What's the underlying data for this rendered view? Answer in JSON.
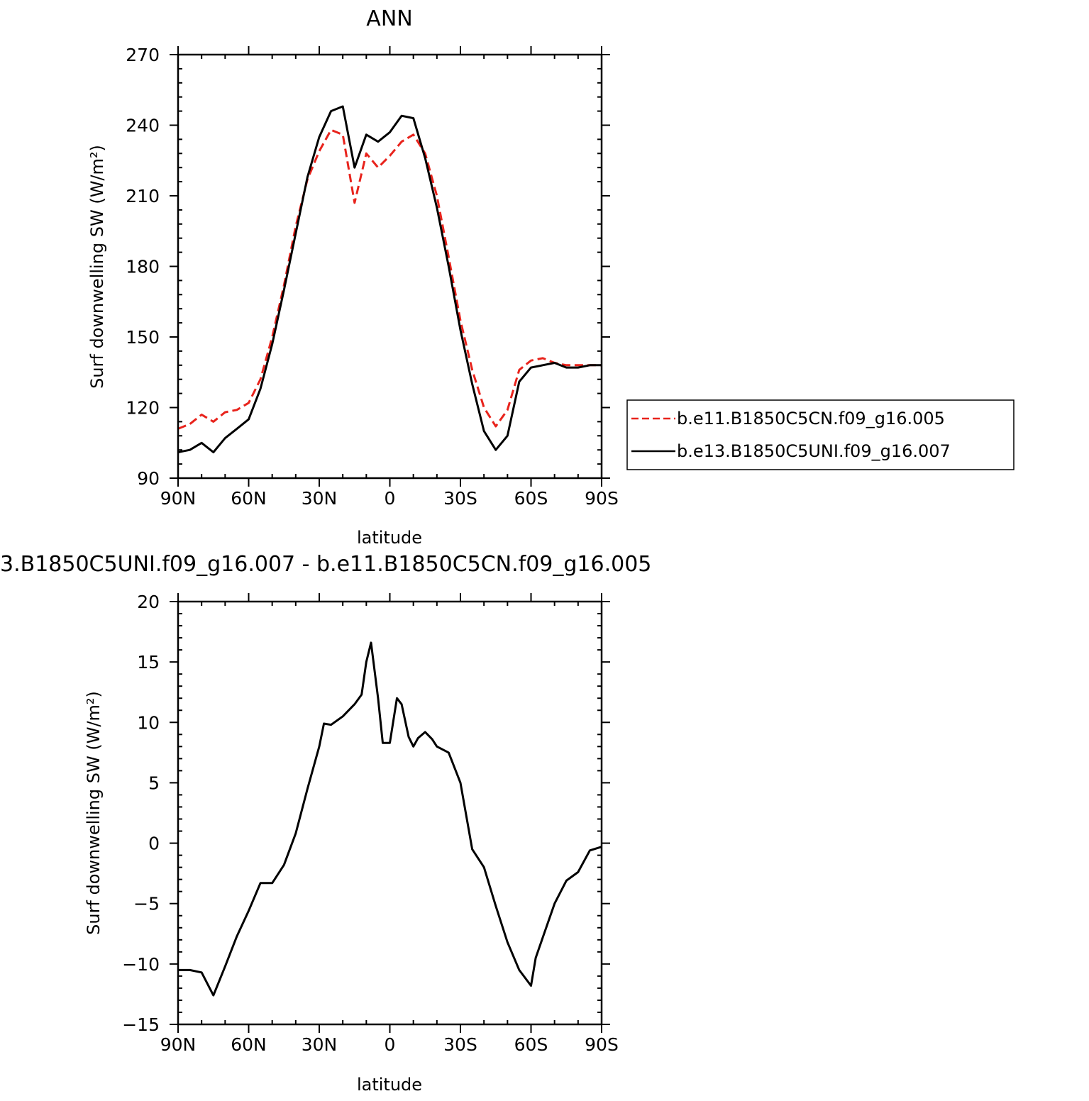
{
  "chart_data": [
    {
      "type": "line",
      "title": "ANN",
      "xlabel": "latitude",
      "ylabel": "Surf downwelling SW (W/m²)",
      "x_ticks": [
        "90N",
        "60N",
        "30N",
        "0",
        "30S",
        "60S",
        "90S"
      ],
      "y_ticks": [
        "90",
        "120",
        "150",
        "180",
        "210",
        "240",
        "270"
      ],
      "xlim": [
        90,
        -90
      ],
      "ylim": [
        90,
        270
      ],
      "legend": {
        "placement": "right-outside",
        "entries": [
          "b.e11.B1850C5CN.f09_g16.005",
          "b.e13.B1850C5UNI.f09_g16.007"
        ]
      },
      "x": [
        90,
        85,
        80,
        75,
        70,
        65,
        60,
        55,
        50,
        45,
        40,
        35,
        30,
        25,
        20,
        15,
        10,
        5,
        0,
        -5,
        -10,
        -15,
        -20,
        -25,
        -30,
        -35,
        -40,
        -45,
        -50,
        -55,
        -60,
        -65,
        -70,
        -75,
        -80,
        -85,
        -90
      ],
      "series": [
        {
          "name": "b.e11.B1850C5CN.f09_g16.005",
          "color": "#e8231c",
          "dash": "dashed",
          "values": [
            111,
            113,
            117,
            114,
            118,
            119,
            122,
            132,
            150,
            172,
            197,
            217,
            229,
            238,
            236,
            207,
            228,
            222,
            227,
            233,
            236,
            228,
            210,
            184,
            157,
            136,
            120,
            112,
            119,
            136,
            140,
            141,
            139,
            138,
            138,
            138,
            138
          ]
        },
        {
          "name": "b.e13.B1850C5UNI.f09_g16.007",
          "color": "#000000",
          "dash": "solid",
          "values": [
            101,
            102,
            105,
            101,
            107,
            111,
            115,
            128,
            147,
            170,
            194,
            218,
            235,
            246,
            248,
            222,
            236,
            233,
            237,
            244,
            243,
            226,
            205,
            180,
            153,
            130,
            110,
            102,
            108,
            131,
            137,
            138,
            139,
            137,
            137,
            138,
            138
          ]
        }
      ]
    },
    {
      "type": "line",
      "title": "3.B1850C5UNI.f09_g16.007 - b.e11.B1850C5CN.f09_g16.005",
      "xlabel": "latitude",
      "ylabel": "Surf downwelling SW (W/m²)",
      "x_ticks": [
        "90N",
        "60N",
        "30N",
        "0",
        "30S",
        "60S",
        "90S"
      ],
      "y_ticks": [
        "20",
        "15",
        "10",
        "5",
        "0",
        "-5",
        "-10",
        "-15"
      ],
      "xlim": [
        90,
        -90
      ],
      "ylim": [
        -15,
        20
      ],
      "x": [
        90,
        85,
        80,
        75,
        70,
        65,
        60,
        55,
        50,
        45,
        40,
        35,
        30,
        28,
        25,
        20,
        15,
        12,
        10,
        8,
        5,
        3,
        0,
        -3,
        -5,
        -8,
        -10,
        -12,
        -15,
        -18,
        -20,
        -25,
        -30,
        -35,
        -40,
        -45,
        -50,
        -55,
        -60,
        -62,
        -65,
        -70,
        -75,
        -80,
        -85,
        -90
      ],
      "series": [
        {
          "name": "",
          "color": "#000000",
          "dash": "solid",
          "values": [
            -10.5,
            -10.5,
            -10.7,
            -12.6,
            -10.2,
            -7.7,
            -5.6,
            -3.3,
            -3.3,
            -1.8,
            0.8,
            4.5,
            8.0,
            9.9,
            9.8,
            10.5,
            11.5,
            12.3,
            15.0,
            16.6,
            12.0,
            8.3,
            8.3,
            12.0,
            11.5,
            8.8,
            8.0,
            8.7,
            9.2,
            8.6,
            8.0,
            7.5,
            5.0,
            -0.5,
            -2.0,
            -5.2,
            -8.2,
            -10.5,
            -11.8,
            -9.5,
            -7.8,
            -5.0,
            -3.1,
            -2.4,
            -0.6,
            -0.3
          ]
        }
      ]
    }
  ]
}
